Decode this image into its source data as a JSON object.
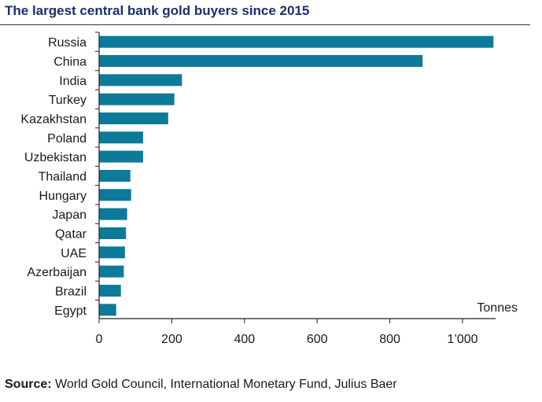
{
  "title": "The largest central bank gold buyers since 2015",
  "source": {
    "label": "Source:",
    "text": "World Gold Council, International Monetary Fund, Julius Baer"
  },
  "colors": {
    "bar": "#0e7a99",
    "title": "#1b2f6e",
    "axis": "#222222"
  },
  "chart_data": {
    "type": "bar",
    "orientation": "horizontal",
    "title": "The largest central bank gold buyers since 2015",
    "xlabel": "Tonnes",
    "ylabel": "",
    "categories": [
      "Russia",
      "China",
      "India",
      "Turkey",
      "Kazakhstan",
      "Poland",
      "Uzbekistan",
      "Thailand",
      "Hungary",
      "Japan",
      "Qatar",
      "UAE",
      "Azerbaijan",
      "Brazil",
      "Egypt"
    ],
    "values": [
      1085,
      890,
      228,
      207,
      190,
      121,
      121,
      86,
      88,
      77,
      74,
      71,
      68,
      60,
      47
    ],
    "xlim": [
      0,
      1100
    ],
    "xticks": [
      0,
      200,
      400,
      600,
      800,
      1000
    ],
    "xtick_labels": [
      "0",
      "200",
      "400",
      "600",
      "800",
      "1’000"
    ],
    "grid": false,
    "legend": "none"
  }
}
